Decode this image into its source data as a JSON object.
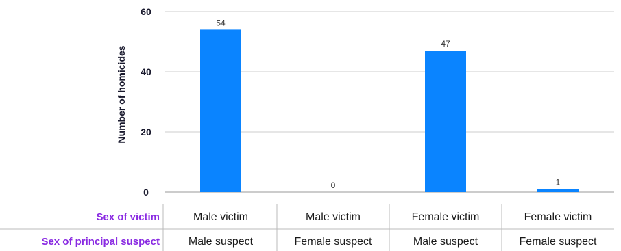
{
  "colors": {
    "bar": "#0a84ff",
    "row_label": "#8a2be2",
    "grid": "#cccccc",
    "divider": "#bbbbbb"
  },
  "chart_data": {
    "type": "bar",
    "ylabel": "Number of homicides",
    "ylim": [
      0,
      60
    ],
    "yticks": [
      0,
      20,
      40,
      60
    ],
    "grid": true,
    "values": [
      54,
      0,
      47,
      1
    ],
    "data_labels": [
      "54",
      "0",
      "47",
      "1"
    ],
    "category_rows": [
      {
        "label": "Sex of victim",
        "values": [
          "Male victim",
          "Male victim",
          "Female victim",
          "Female victim"
        ]
      },
      {
        "label": "Sex of principal suspect",
        "values": [
          "Male suspect",
          "Female suspect",
          "Male suspect",
          "Female suspect"
        ]
      }
    ]
  }
}
